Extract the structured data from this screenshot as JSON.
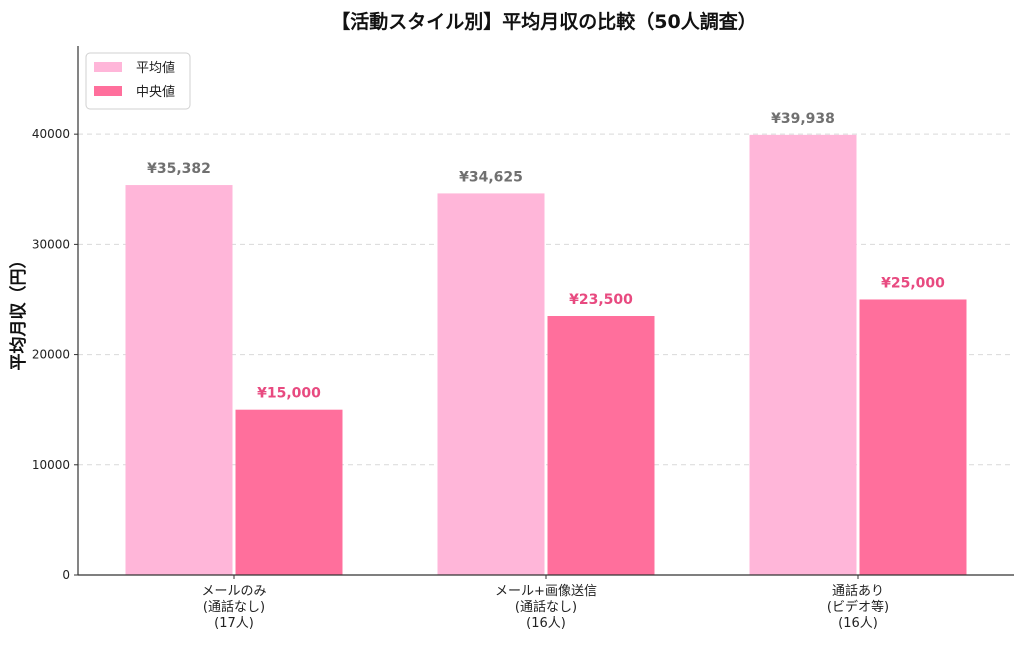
{
  "chart_data": {
    "type": "bar",
    "title": "【活動スタイル別】平均月収の比較（50人調査）",
    "ylabel": "平均月収（円）",
    "xlabel": "",
    "ylim": [
      0,
      48000
    ],
    "yticks": [
      "0",
      "10000",
      "20000",
      "30000",
      "40000"
    ],
    "ytick_values": [
      0,
      10000,
      20000,
      30000,
      40000
    ],
    "categories": [
      [
        "メールのみ",
        "(通話なし)",
        "(17人)"
      ],
      [
        "メール+画像送信",
        "(通話なし)",
        "(16人)"
      ],
      [
        "通話あり",
        "(ビデオ等)",
        "(16人)"
      ]
    ],
    "series": [
      {
        "name": "平均値",
        "color": "#ffb6d9",
        "label_color": "#707070",
        "values": [
          35382,
          34625,
          39938
        ],
        "labels": [
          "¥35,382",
          "¥34,625",
          "¥39,938"
        ]
      },
      {
        "name": "中央値",
        "color": "#ff6f9c",
        "label_color": "#e84a80",
        "values": [
          15000,
          23500,
          25000
        ],
        "labels": [
          "¥15,000",
          "¥23,500",
          "¥25,000"
        ]
      }
    ],
    "grid": "y-dashed",
    "legend_position": "top-left"
  }
}
